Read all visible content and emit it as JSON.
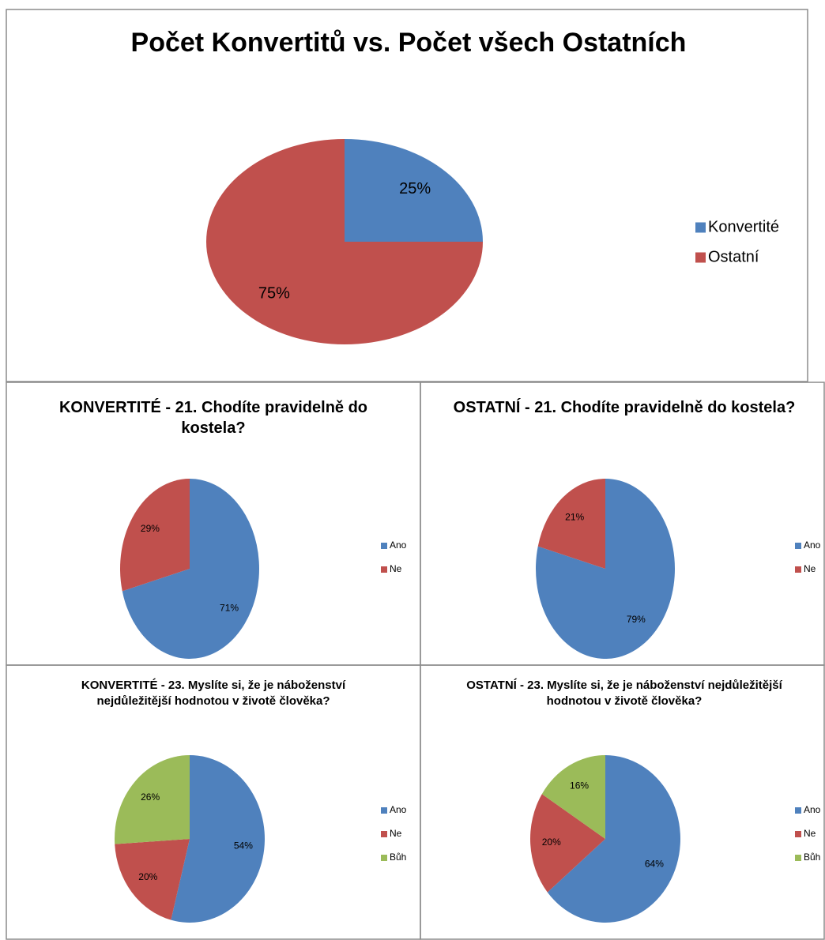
{
  "chart_data": [
    {
      "type": "pie",
      "title": "Počet Konvertitů vs. Počet všech Ostatních",
      "categories": [
        "Konvertité",
        "Ostatní"
      ],
      "values": [
        25,
        75
      ],
      "value_labels": [
        "25%",
        "75%"
      ],
      "colors": [
        "#4f81bd",
        "#c0504d"
      ],
      "legend": "right"
    },
    {
      "type": "pie",
      "title": "KONVERTITÉ - 21. Chodíte pravidelně do kostela?",
      "categories": [
        "Ano",
        "Ne"
      ],
      "values": [
        71,
        29
      ],
      "value_labels": [
        "71%",
        "29%"
      ],
      "colors": [
        "#4f81bd",
        "#c0504d"
      ],
      "legend": "right"
    },
    {
      "type": "pie",
      "title": "OSTATNÍ - 21. Chodíte pravidelně do kostela?",
      "categories": [
        "Ano",
        "Ne"
      ],
      "values": [
        79,
        21
      ],
      "value_labels": [
        "79%",
        "21%"
      ],
      "colors": [
        "#4f81bd",
        "#c0504d"
      ],
      "legend": "right"
    },
    {
      "type": "pie",
      "title": "KONVERTITÉ - 23. Myslíte si, že je náboženství nejdůležitější hodnotou v životě člověka?",
      "categories": [
        "Ano",
        "Ne",
        "Bůh"
      ],
      "values": [
        54,
        20,
        26
      ],
      "value_labels": [
        "54%",
        "20%",
        "26%"
      ],
      "colors": [
        "#4f81bd",
        "#c0504d",
        "#9bbb59"
      ],
      "legend": "right"
    },
    {
      "type": "pie",
      "title": "OSTATNÍ - 23. Myslíte si, že je náboženství nejdůležitější hodnotou v životě člověka?",
      "categories": [
        "Ano",
        "Ne",
        "Bůh"
      ],
      "values": [
        64,
        20,
        16
      ],
      "value_labels": [
        "64%",
        "20%",
        "16%"
      ],
      "colors": [
        "#4f81bd",
        "#c0504d",
        "#9bbb59"
      ],
      "legend": "right"
    }
  ]
}
